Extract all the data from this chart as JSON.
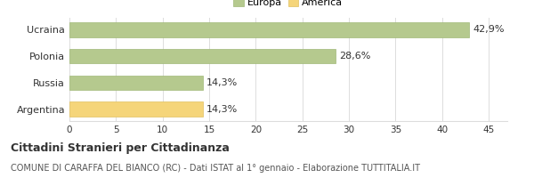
{
  "categories": [
    "Argentina",
    "Russia",
    "Polonia",
    "Ucraina"
  ],
  "values": [
    14.3,
    14.3,
    28.6,
    42.9
  ],
  "labels": [
    "14,3%",
    "14,3%",
    "28,6%",
    "42,9%"
  ],
  "bar_colors": [
    "#f5d57a",
    "#b5c98e",
    "#b5c98e",
    "#b5c98e"
  ],
  "bar_edgecolors": [
    "#e0c060",
    "#a0b878",
    "#a0b878",
    "#a0b878"
  ],
  "legend_items": [
    {
      "label": "Europa",
      "color": "#b5c98e",
      "edgecolor": "#a0b878"
    },
    {
      "label": "America",
      "color": "#f5d57a",
      "edgecolor": "#e0c060"
    }
  ],
  "xlim": [
    0,
    47
  ],
  "xticks": [
    0,
    5,
    10,
    15,
    20,
    25,
    30,
    35,
    40,
    45
  ],
  "title": "Cittadini Stranieri per Cittadinanza",
  "subtitle": "COMUNE DI CARAFFA DEL BIANCO (RC) - Dati ISTAT al 1° gennaio - Elaborazione TUTTITALIA.IT",
  "background_color": "#ffffff",
  "grid_color": "#dddddd",
  "text_color": "#333333",
  "label_fontsize": 8,
  "tick_fontsize": 7.5,
  "title_fontsize": 9,
  "subtitle_fontsize": 7
}
